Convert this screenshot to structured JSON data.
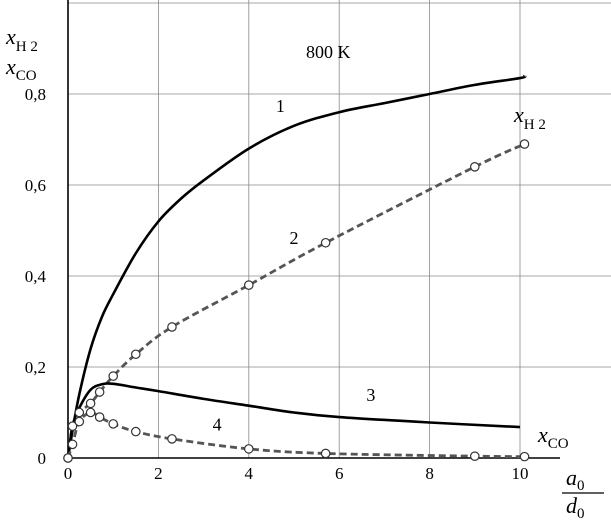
{
  "chart_data": {
    "type": "line",
    "title": "800 K",
    "x_axis": {
      "label_numerator": "a",
      "label_numerator_sub": "0",
      "label_denominator": "d",
      "label_denominator_sub": "0",
      "ticks": [
        "0",
        "2",
        "4",
        "6",
        "8",
        "10"
      ],
      "tick_values": [
        0,
        2,
        4,
        6,
        8,
        10
      ],
      "range": [
        0,
        11.2
      ]
    },
    "y_axis": {
      "label_top_sym": "x",
      "label_top_sub": "H 2",
      "label_bottom_sym": "x",
      "label_bottom_sub": "CO",
      "ticks": [
        "0",
        "0,2",
        "0,4",
        "0,6",
        "0,8"
      ],
      "tick_values": [
        0,
        0.2,
        0.4,
        0.6,
        0.8
      ],
      "range": [
        0,
        1.0
      ]
    },
    "grid": true,
    "series": [
      {
        "name": "1",
        "style": "solid",
        "markers": false,
        "x": [
          0,
          0.1,
          0.25,
          0.5,
          0.75,
          1.0,
          1.5,
          2.0,
          2.5,
          3.0,
          4.0,
          5.0,
          6.0,
          7.0,
          8.0,
          9.0,
          10.0,
          10.1
        ],
        "y": [
          0,
          0.06,
          0.14,
          0.24,
          0.31,
          0.36,
          0.45,
          0.52,
          0.57,
          0.61,
          0.68,
          0.73,
          0.76,
          0.78,
          0.8,
          0.82,
          0.835,
          0.84
        ]
      },
      {
        "name": "2",
        "style": "dashed",
        "markers": true,
        "x": [
          0,
          0.1,
          0.25,
          0.5,
          0.7,
          1.0,
          1.5,
          2.3,
          4.0,
          5.7,
          9.0,
          10.1
        ],
        "y": [
          0,
          0.07,
          0.1,
          0.12,
          0.145,
          0.18,
          0.228,
          0.288,
          0.38,
          0.473,
          0.64,
          0.69
        ]
      },
      {
        "name": "3",
        "style": "solid",
        "markers": false,
        "x": [
          0,
          0.1,
          0.25,
          0.5,
          0.75,
          1.0,
          1.5,
          2.0,
          3.0,
          4.0,
          5.0,
          6.0,
          8.0,
          10.0
        ],
        "y": [
          0,
          0.07,
          0.11,
          0.15,
          0.162,
          0.163,
          0.155,
          0.147,
          0.13,
          0.115,
          0.1,
          0.09,
          0.078,
          0.068
        ]
      },
      {
        "name": "4",
        "style": "dashed",
        "markers": true,
        "x": [
          0,
          0.1,
          0.25,
          0.5,
          0.7,
          1.0,
          1.5,
          2.3,
          4.0,
          5.7,
          9.0,
          10.1
        ],
        "y": [
          0,
          0.03,
          0.08,
          0.1,
          0.09,
          0.075,
          0.058,
          0.042,
          0.02,
          0.01,
          0.004,
          0.003
        ]
      }
    ],
    "annotations": [
      {
        "text": "1",
        "x": 4.6,
        "y": 0.76
      },
      {
        "text": "2",
        "x": 4.9,
        "y": 0.47
      },
      {
        "text": "3",
        "x": 6.6,
        "y": 0.125
      },
      {
        "text": "4",
        "x": 3.2,
        "y": 0.06
      }
    ],
    "curve_labels": {
      "h2_sym": "x",
      "h2_sub": "H 2",
      "co_sym": "x",
      "co_sub": "CO"
    }
  }
}
